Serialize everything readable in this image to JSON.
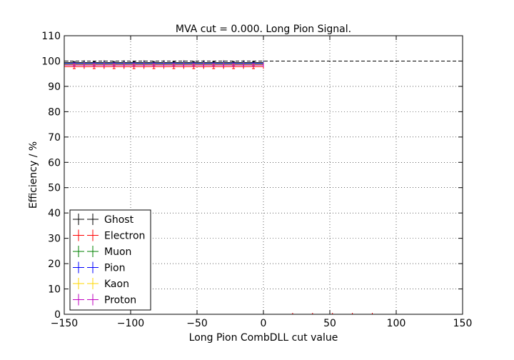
{
  "chart_data": {
    "type": "scatter",
    "title": "MVA cut = 0.000. Long Pion Signal.",
    "xlabel": "Long Pion CombDLL cut value",
    "ylabel": "Efficiency / %",
    "xlim": [
      -150,
      150
    ],
    "ylim": [
      0,
      110
    ],
    "xticks": [
      -150,
      -100,
      -50,
      0,
      50,
      100,
      150
    ],
    "yticks": [
      0,
      10,
      20,
      30,
      40,
      50,
      60,
      70,
      80,
      90,
      100,
      110
    ],
    "xtick_labels": [
      "−150",
      "−100",
      "−50",
      "0",
      "50",
      "100",
      "150"
    ],
    "ytick_labels": [
      "0",
      "10",
      "20",
      "30",
      "40",
      "50",
      "60",
      "70",
      "80",
      "90",
      "100",
      "110"
    ],
    "grid": true,
    "legend_position": "lower-left",
    "reference_line": 100,
    "x": [
      -142.5,
      -127.5,
      -112.5,
      -97.5,
      -82.5,
      -67.5,
      -52.5,
      -37.5,
      -22.5,
      -7.5
    ],
    "x_halfwidth": 7.5,
    "series": [
      {
        "name": "Ghost",
        "color": "#000000",
        "values": [
          99.4,
          99.4,
          99.4,
          99.4,
          99.4,
          99.4,
          99.4,
          99.4,
          99.4,
          99.4
        ],
        "err": 0.4
      },
      {
        "name": "Electron",
        "color": "#ff0000",
        "values": [
          97.8,
          97.8,
          97.8,
          97.8,
          97.8,
          97.8,
          97.8,
          97.8,
          97.8,
          97.8
        ],
        "err": 0.8
      },
      {
        "name": "Muon",
        "color": "#008000",
        "values": [
          98.8,
          98.8,
          98.8,
          98.8,
          98.8,
          98.8,
          98.8,
          98.8,
          98.8,
          98.8
        ],
        "err": 0.4
      },
      {
        "name": "Pion",
        "color": "#0000ff",
        "values": [
          99.0,
          99.0,
          99.0,
          99.0,
          99.0,
          99.0,
          99.0,
          99.0,
          99.0,
          99.0
        ],
        "err": 0.3
      },
      {
        "name": "Kaon",
        "color": "#ffd700",
        "values": [
          98.6,
          98.6,
          98.6,
          98.6,
          98.6,
          98.6,
          98.6,
          98.6,
          98.6,
          98.6
        ],
        "err": 0.4
      },
      {
        "name": "Proton",
        "color": "#bf00bf",
        "values": [
          98.4,
          98.4,
          98.4,
          98.4,
          98.4,
          98.4,
          98.4,
          98.4,
          98.4,
          98.4
        ],
        "err": 0.5
      }
    ],
    "minor_marks_x": [
      22,
      37,
      52,
      67,
      82
    ]
  }
}
